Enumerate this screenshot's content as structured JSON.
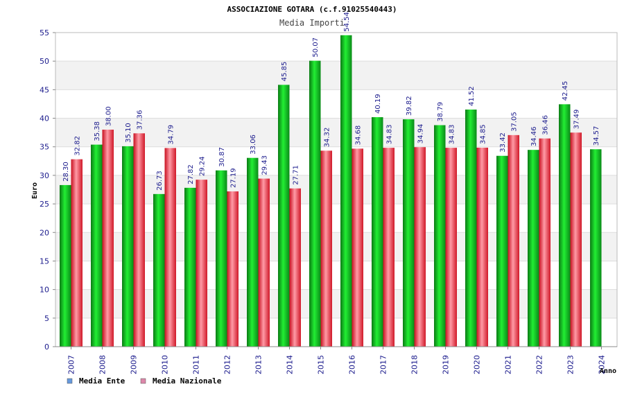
{
  "chart_data": {
    "type": "bar",
    "title": "ASSOCIAZIONE GOTARA (c.f.91025540443)",
    "subtitle": "Media Importi",
    "xlabel": "Anno",
    "ylabel": "Euro",
    "ylim": [
      0,
      55
    ],
    "yticks": [
      "0",
      "5",
      "10",
      "15",
      "20",
      "25",
      "30",
      "35",
      "40",
      "45",
      "50",
      "55"
    ],
    "categories": [
      "2007",
      "2008",
      "2009",
      "2010",
      "2011",
      "2012",
      "2013",
      "2014",
      "2015",
      "2016",
      "2017",
      "2018",
      "2019",
      "2020",
      "2021",
      "2022",
      "2023",
      "2024"
    ],
    "series": [
      {
        "name": "Media Ente",
        "color": "#11cc22",
        "legend_color": "#6699dd",
        "values": [
          28.3,
          35.38,
          35.1,
          26.73,
          27.82,
          30.87,
          33.06,
          45.85,
          50.07,
          54.54,
          40.19,
          39.82,
          38.79,
          41.52,
          33.42,
          34.46,
          42.45,
          34.57
        ],
        "labels": [
          "28.30",
          "35.38",
          "35.10",
          "26.73",
          "27.82",
          "30.87",
          "33.06",
          "45.85",
          "50.07",
          "54.54",
          "40.19",
          "39.82",
          "38.79",
          "41.52",
          "33.42",
          "34.46",
          "42.45",
          "34.57"
        ]
      },
      {
        "name": "Media Nazionale",
        "color": "#ee2233",
        "legend_color": "#dd88aa",
        "values": [
          32.82,
          38.0,
          37.36,
          34.79,
          29.24,
          27.19,
          29.43,
          27.71,
          34.32,
          34.68,
          34.83,
          34.94,
          34.83,
          34.85,
          37.05,
          36.46,
          37.49,
          null
        ],
        "labels": [
          "32.82",
          "38.00",
          "37.36",
          "34.79",
          "29.24",
          "27.19",
          "29.43",
          "27.71",
          "34.32",
          "34.68",
          "34.83",
          "34.94",
          "34.83",
          "34.85",
          "37.05",
          "36.46",
          "37.49",
          ""
        ]
      }
    ],
    "grid": true,
    "legend_position": "bottom-left"
  }
}
